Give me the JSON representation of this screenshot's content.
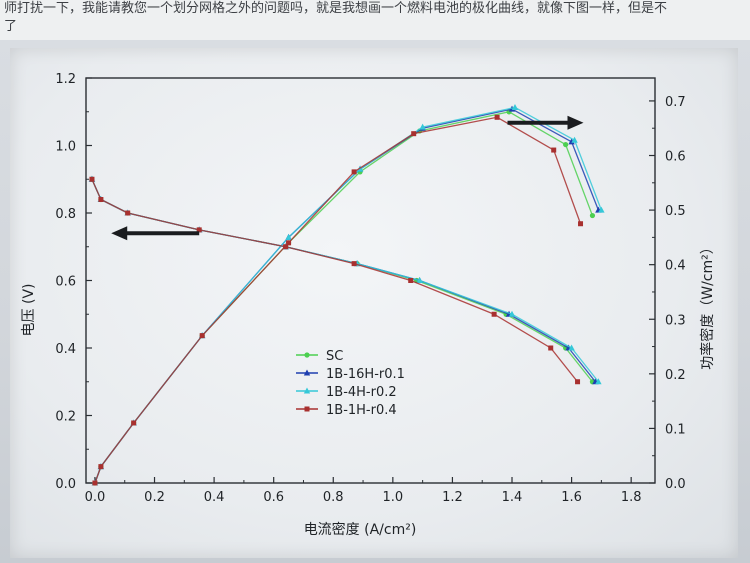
{
  "top_text": {
    "line1": "师打扰一下，我能请教您一个划分网格之外的问题吗，就是我想画一个燃料电池的极化曲线，就像下图一样，但是不",
    "line2": "了"
  },
  "chart_data": {
    "type": "line",
    "xlabel": "电流密度 (A/cm²)",
    "ylabel_left": "电压 (V)",
    "ylabel_right": "功率密度（W/cm²）",
    "xlim": [
      -0.03,
      1.88
    ],
    "ylim_left": [
      0,
      1.2
    ],
    "ylim_right": [
      0,
      0.742
    ],
    "x_ticks": [
      "0.0",
      "0.2",
      "0.4",
      "0.6",
      "0.8",
      "1.0",
      "1.2",
      "1.4",
      "1.6",
      "1.8"
    ],
    "y_left_ticks": [
      "0.0",
      "0.2",
      "0.4",
      "0.6",
      "0.8",
      "1.0",
      "1.2"
    ],
    "y_right_ticks": [
      "0.0",
      "0.1",
      "0.2",
      "0.3",
      "0.4",
      "0.5",
      "0.6",
      "0.7"
    ],
    "legend": {
      "placement": "center",
      "entries": [
        "SC",
        "1B-16H-r0.1",
        "1B-4H-r0.2",
        "1B-1H-r0.4"
      ]
    },
    "arrows": [
      {
        "direction": "left",
        "at_x": 0.35,
        "at_y": 0.74,
        "axis": "left"
      },
      {
        "direction": "right",
        "at_x": 1.64,
        "at_y": 0.66,
        "axis": "right"
      }
    ],
    "series": [
      {
        "name": "SC",
        "color": "#4ccf50",
        "marker": "circle",
        "voltage": {
          "x": [
            -0.01,
            0.02,
            0.11,
            0.35,
            0.64,
            0.88,
            1.08,
            1.38,
            1.58,
            1.67
          ],
          "y": [
            0.9,
            0.84,
            0.8,
            0.75,
            0.7,
            0.65,
            0.6,
            0.5,
            0.4,
            0.3
          ]
        },
        "power": {
          "x": [
            0.0,
            0.02,
            0.13,
            0.36,
            0.65,
            0.89,
            1.09,
            1.39,
            1.58,
            1.67
          ],
          "y": [
            0.0,
            0.03,
            0.11,
            0.27,
            0.44,
            0.57,
            0.645,
            0.68,
            0.62,
            0.49
          ]
        }
      },
      {
        "name": "1B-16H-r0.1",
        "color": "#1f3fb0",
        "marker": "triangle",
        "voltage": {
          "x": [
            -0.01,
            0.02,
            0.11,
            0.35,
            0.64,
            0.88,
            1.09,
            1.39,
            1.59,
            1.68
          ],
          "y": [
            0.9,
            0.84,
            0.8,
            0.75,
            0.7,
            0.65,
            0.6,
            0.5,
            0.4,
            0.3
          ]
        },
        "power": {
          "x": [
            0.0,
            0.02,
            0.13,
            0.36,
            0.65,
            0.89,
            1.1,
            1.4,
            1.6,
            1.69
          ],
          "y": [
            0.0,
            0.03,
            0.11,
            0.27,
            0.45,
            0.575,
            0.65,
            0.685,
            0.625,
            0.5
          ]
        }
      },
      {
        "name": "1B-4H-r0.2",
        "color": "#35c8d8",
        "marker": "triangle",
        "voltage": {
          "x": [
            -0.01,
            0.02,
            0.11,
            0.35,
            0.64,
            0.88,
            1.09,
            1.4,
            1.6,
            1.69
          ],
          "y": [
            0.9,
            0.84,
            0.8,
            0.75,
            0.7,
            0.65,
            0.6,
            0.5,
            0.4,
            0.3
          ]
        },
        "power": {
          "x": [
            0.0,
            0.02,
            0.13,
            0.36,
            0.65,
            0.89,
            1.1,
            1.41,
            1.61,
            1.7
          ],
          "y": [
            0.0,
            0.03,
            0.11,
            0.27,
            0.45,
            0.575,
            0.652,
            0.688,
            0.628,
            0.5
          ]
        }
      },
      {
        "name": "1B-1H-r0.4",
        "color": "#a8302f",
        "marker": "square",
        "voltage": {
          "x": [
            -0.01,
            0.02,
            0.11,
            0.35,
            0.64,
            0.87,
            1.06,
            1.34,
            1.53,
            1.62
          ],
          "y": [
            0.9,
            0.84,
            0.8,
            0.75,
            0.7,
            0.65,
            0.6,
            0.5,
            0.4,
            0.3
          ]
        },
        "power": {
          "x": [
            0.0,
            0.02,
            0.13,
            0.36,
            0.65,
            0.87,
            1.07,
            1.35,
            1.54,
            1.63
          ],
          "y": [
            0.0,
            0.03,
            0.11,
            0.27,
            0.44,
            0.57,
            0.64,
            0.67,
            0.61,
            0.475
          ]
        }
      }
    ]
  }
}
